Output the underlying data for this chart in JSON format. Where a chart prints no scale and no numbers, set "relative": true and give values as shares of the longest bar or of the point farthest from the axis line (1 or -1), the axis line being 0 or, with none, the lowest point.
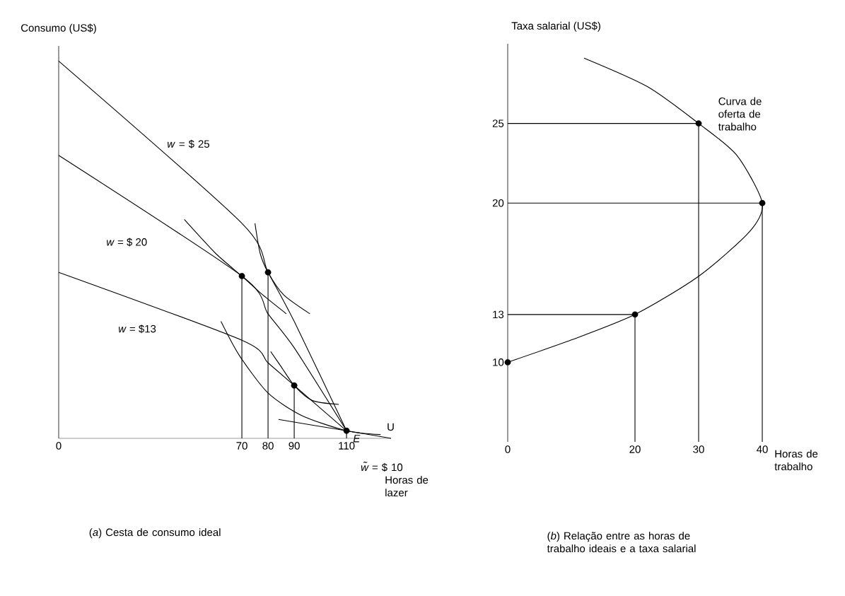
{
  "chart_data": [
    {
      "type": "line",
      "title": "(*a*) Cesta de consumo ideal",
      "xlabel": "Horas de lazer",
      "ylabel": "Consumo (US$)",
      "relative": true,
      "xlim": [
        0,
        127
      ],
      "xticks": [
        0,
        70,
        80,
        90,
        110
      ],
      "annotations": [
        {
          "text": "E",
          "x": 110,
          "y": 0.02
        }
      ],
      "series": [
        {
          "name": "*w* = $ 25",
          "color": "#000000",
          "x": [
            0,
            70,
            80,
            90,
            110
          ],
          "values": [
            1.0,
            0.57,
            0.44,
            0.31,
            0.02
          ]
        },
        {
          "name": "*w* = $ 20",
          "color": "#000000",
          "x": [
            0,
            70,
            80,
            90,
            110
          ],
          "values": [
            0.75,
            0.43,
            0.33,
            0.24,
            0.02
          ]
        },
        {
          "name": "*w* = $13",
          "color": "#000000",
          "x": [
            0,
            70,
            80,
            90,
            110
          ],
          "values": [
            0.44,
            0.26,
            0.2,
            0.14,
            0.02
          ]
        },
        {
          "name": "*w̃* = $ 10",
          "color": "#000000",
          "x": [
            84,
            110,
            127
          ],
          "values": [
            0.05,
            0.02,
            0
          ]
        },
        {
          "name": "U",
          "color": "#000000",
          "x": [
            62,
            69,
            80,
            93,
            110,
            123
          ],
          "values": [
            0.31,
            0.22,
            0.12,
            0.06,
            0.02,
            0.01
          ]
        },
        {
          "color": "#000000",
          "x": [
            48,
            60,
            70,
            78,
            87
          ],
          "values": [
            0.58,
            0.49,
            0.43,
            0.38,
            0.33
          ]
        },
        {
          "color": "#000000",
          "x": [
            75,
            77,
            80,
            86,
            96
          ],
          "values": [
            0.57,
            0.49,
            0.44,
            0.38,
            0.33
          ]
        },
        {
          "color": "#000000",
          "x": [
            81,
            85,
            90,
            97,
            107
          ],
          "values": [
            0.23,
            0.19,
            0.14,
            0.1,
            0.09
          ]
        },
        {
          "color": "#000000",
          "x": [
            70,
            70
          ],
          "values": [
            0,
            0.43
          ]
        },
        {
          "color": "#000000",
          "x": [
            80,
            80
          ],
          "values": [
            0,
            0.44
          ]
        },
        {
          "color": "#000000",
          "x": [
            90,
            90
          ],
          "values": [
            0,
            0.14
          ]
        },
        {
          "color": "#000000",
          "x": [
            110,
            110
          ],
          "values": [
            0,
            0.02
          ]
        },
        {
          "type": "scatter",
          "color": "#000000",
          "x": [
            70,
            80,
            90,
            110
          ],
          "values": [
            0.43,
            0.44,
            0.14,
            0.02
          ]
        }
      ]
    },
    {
      "type": "line",
      "title": "(*b*) Relação entre as horas de trabalho ideais e a taxa salarial",
      "xlabel": "Horas de trabalho",
      "ylabel": "Taxa salarial (US$)",
      "xlim": [
        0,
        40
      ],
      "ylim": [
        5,
        30
      ],
      "xticks": [
        0,
        20,
        30,
        40
      ],
      "yticks": [
        10,
        13,
        20,
        25
      ],
      "series": [
        {
          "name": "Curva de oferta de trabalho",
          "color": "#000000",
          "x": [
            12,
            22,
            30,
            36,
            40,
            38,
            30,
            20,
            10,
            0
          ],
          "values": [
            29.1,
            27.3,
            25,
            23,
            20,
            18.2,
            15.4,
            13,
            11.4,
            10
          ]
        },
        {
          "color": "#000000",
          "x": [
            0,
            30
          ],
          "values": [
            25,
            25
          ]
        },
        {
          "color": "#000000",
          "x": [
            0,
            40
          ],
          "values": [
            20,
            20
          ]
        },
        {
          "color": "#000000",
          "x": [
            0,
            20
          ],
          "values": [
            13,
            13
          ]
        },
        {
          "color": "#000000",
          "x": [
            30,
            30
          ],
          "values": [
            5,
            25
          ]
        },
        {
          "color": "#000000",
          "x": [
            40,
            40
          ],
          "values": [
            5,
            20
          ]
        },
        {
          "color": "#000000",
          "x": [
            20,
            20
          ],
          "values": [
            5,
            13
          ]
        },
        {
          "type": "scatter",
          "color": "#000000",
          "x": [
            0,
            20,
            30,
            40
          ],
          "values": [
            10,
            13,
            25,
            20
          ]
        }
      ]
    }
  ]
}
